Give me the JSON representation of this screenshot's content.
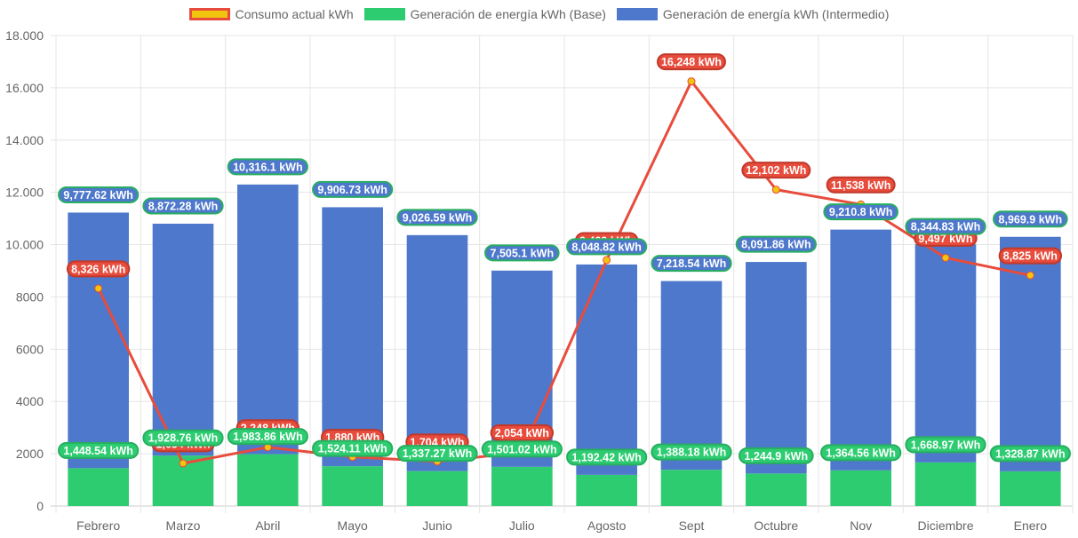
{
  "chart_data": {
    "type": "bar",
    "stacked": true,
    "title": "",
    "xlabel": "",
    "ylabel": "",
    "categories": [
      "Febrero",
      "Marzo",
      "Abril",
      "Mayo",
      "Junio",
      "Julio",
      "Agosto",
      "Sept",
      "Octubre",
      "Nov",
      "Diciembre",
      "Enero"
    ],
    "ylim": [
      0,
      18000
    ],
    "yticks": [
      0,
      2000,
      4000,
      6000,
      8000,
      10000,
      12000,
      14000,
      16000,
      18000
    ],
    "ytick_labels": [
      "0",
      "2000",
      "4000",
      "6000",
      "8000",
      "10.000",
      "12.000",
      "14.000",
      "16.000",
      "18.000"
    ],
    "grid": true,
    "legend_position": "top-center",
    "series": [
      {
        "name": "Consumo actual kWh",
        "type": "line",
        "color": "#e74c3c",
        "point_color": "#f1c40f",
        "values": [
          8326,
          1634,
          2248,
          1880,
          1704,
          2054,
          9409,
          16248,
          12102,
          11538,
          9497,
          8825
        ],
        "labels": [
          "8,326 kWh",
          "1,634 kWh",
          "2,248 kWh",
          "1,880 kWh",
          "1,704 kWh",
          "2,054 kWh",
          "9,409 kWh",
          "16,248 kWh",
          "12,102 kWh",
          "11,538 kWh",
          "9,497 kWh",
          "8,825 kWh"
        ]
      },
      {
        "name": "Generación de energía kWh (Base)",
        "type": "bar",
        "color": "#2ecc71",
        "values": [
          1448.54,
          1928.76,
          1983.86,
          1524.11,
          1337.27,
          1501.02,
          1192.42,
          1388.18,
          1244.9,
          1364.56,
          1668.97,
          1328.87
        ],
        "labels": [
          "1,448.54 kWh",
          "1,928.76 kWh",
          "1,983.86 kWh",
          "1,524.11 kWh",
          "1,337.27 kWh",
          "1,501.02 kWh",
          "1,192.42 kWh",
          "1,388.18 kWh",
          "1,244.9 kWh",
          "1,364.56 kWh",
          "1,668.97 kWh",
          "1,328.87 kWh"
        ]
      },
      {
        "name": "Generación de energía kWh (Intermedio)",
        "type": "bar",
        "color": "#4e78cb",
        "values": [
          9777.62,
          8872.28,
          10316.1,
          9906.73,
          9026.59,
          7505.1,
          8048.82,
          7218.54,
          8091.86,
          9210.8,
          8344.83,
          8969.9
        ],
        "labels": [
          "9,777.62 kWh",
          "8,872.28 kWh",
          "10,316.1 kWh",
          "9,906.73 kWh",
          "9,026.59 kWh",
          "7,505.1 kWh",
          "8,048.82 kWh",
          "7,218.54 kWh",
          "8,091.86 kWh",
          "9,210.8 kWh",
          "8,344.83 kWh",
          "8,969.9 kWh"
        ]
      }
    ]
  },
  "legend": {
    "items": [
      {
        "label": "Consumo actual kWh",
        "fill": "#f1c40f",
        "border": "#e74c3c"
      },
      {
        "label": "Generación de energía kWh (Base)",
        "fill": "#2ecc71",
        "border": "#2ecc71"
      },
      {
        "label": "Generación de energía kWh (Intermedio)",
        "fill": "#4e78cb",
        "border": "#4e78cb"
      }
    ]
  }
}
